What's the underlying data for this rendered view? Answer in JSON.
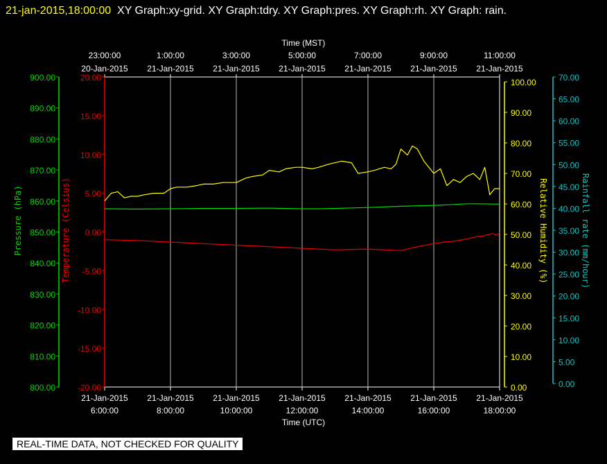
{
  "header": {
    "timestamp": "21-jan-2015,18:00:00",
    "graphs": "XY Graph:xy-grid.  XY Graph:tdry.  XY Graph:pres.  XY Graph:rh.  XY Graph: rain."
  },
  "footer": {
    "notice": "REAL-TIME DATA, NOT CHECKED FOR QUALITY"
  },
  "colors": {
    "pressure": "#00dd00",
    "temperature": "#ee0000",
    "humidity": "#ffff00",
    "rain": "#00cccc",
    "grid": "#bbbbbb",
    "text": "#ffffff"
  },
  "chart_data": {
    "type": "line",
    "x_top": {
      "label": "Time (MST)",
      "ticks": [
        {
          "time": "23:00:00",
          "date": "20-Jan-2015"
        },
        {
          "time": "1:00:00",
          "date": "21-Jan-2015"
        },
        {
          "time": "3:00:00",
          "date": "21-Jan-2015"
        },
        {
          "time": "5:00:00",
          "date": "21-Jan-2015"
        },
        {
          "time": "7:00:00",
          "date": "21-Jan-2015"
        },
        {
          "time": "9:00:00",
          "date": "21-Jan-2015"
        },
        {
          "time": "11:00:00",
          "date": "21-Jan-2015"
        }
      ]
    },
    "x_bottom": {
      "label": "Time (UTC)",
      "ticks": [
        {
          "date": "21-Jan-2015",
          "time": "6:00:00"
        },
        {
          "date": "21-Jan-2015",
          "time": "8:00:00"
        },
        {
          "date": "21-Jan-2015",
          "time": "10:00:00"
        },
        {
          "date": "21-Jan-2015",
          "time": "12:00:00"
        },
        {
          "date": "21-Jan-2015",
          "time": "14:00:00"
        },
        {
          "date": "21-Jan-2015",
          "time": "16:00:00"
        },
        {
          "date": "21-Jan-2015",
          "time": "18:00:00"
        }
      ]
    },
    "x_range_utc_hours": [
      6,
      18
    ],
    "y_axes": {
      "pressure": {
        "label": "Pressure (hPa)",
        "range": [
          800,
          900
        ],
        "ticks": [
          "900.00",
          "890.00",
          "880.00",
          "870.00",
          "860.00",
          "850.00",
          "840.00",
          "830.00",
          "820.00",
          "810.00",
          "800.00"
        ]
      },
      "temperature": {
        "label": "Temperature (Celsius)",
        "range": [
          -20,
          20
        ],
        "ticks": [
          "20.00",
          "15.00",
          "10.00",
          "5.00",
          "0.00",
          "-5.00",
          "-10.00",
          "-15.00",
          "-20.00"
        ]
      },
      "humidity": {
        "label": "Relative Humidity (%)",
        "range": [
          0,
          100
        ],
        "ticks": [
          "100.00",
          "90.00",
          "80.00",
          "70.00",
          "60.00",
          "50.00",
          "40.00",
          "30.00",
          "20.00",
          "10.00",
          "0.00"
        ]
      },
      "rain": {
        "label": "Rainfall rate (mm/hour)",
        "range": [
          0,
          70
        ],
        "ticks": [
          "70.00",
          "65.00",
          "60.00",
          "55.00",
          "50.00",
          "45.00",
          "40.00",
          "35.00",
          "30.00",
          "25.00",
          "20.00",
          "15.00",
          "10.00",
          "5.00",
          "0.00"
        ]
      }
    },
    "grid": true,
    "series": [
      {
        "axis": "humidity",
        "x": [
          6.0,
          6.2,
          6.4,
          6.6,
          6.8,
          7.0,
          7.2,
          7.5,
          7.8,
          8.0,
          8.2,
          8.5,
          8.8,
          9.0,
          9.3,
          9.6,
          10.0,
          10.3,
          10.5,
          10.8,
          11.0,
          11.3,
          11.5,
          11.8,
          12.0,
          12.3,
          12.5,
          12.8,
          13.0,
          13.2,
          13.5,
          13.7,
          14.0,
          14.2,
          14.5,
          14.7,
          14.85,
          15.0,
          15.2,
          15.35,
          15.5,
          15.7,
          16.0,
          16.2,
          16.4,
          16.6,
          16.8,
          17.0,
          17.2,
          17.4,
          17.55,
          17.7,
          17.85,
          18.0
        ],
        "y": [
          61,
          63.5,
          64,
          62,
          62.5,
          62.5,
          63,
          63.5,
          63.5,
          65,
          65.5,
          65.5,
          66,
          66.5,
          66.5,
          67,
          67,
          68.5,
          69,
          69.5,
          71,
          70.5,
          71.5,
          72,
          72,
          71.5,
          72,
          73,
          73.5,
          74,
          73.5,
          70,
          70.5,
          71,
          72,
          71.5,
          73,
          78,
          76,
          79,
          78,
          74,
          70,
          71.5,
          66,
          68,
          67,
          69,
          70,
          68,
          72,
          63,
          65,
          65
        ]
      },
      {
        "axis": "pressure",
        "x": [
          6.0,
          7.0,
          8.0,
          9.0,
          10.0,
          11.0,
          12.0,
          12.5,
          13.0,
          14.0,
          15.0,
          16.0,
          16.5,
          17.0,
          17.3,
          18.0
        ],
        "y": [
          857.5,
          857.4,
          857.5,
          857.6,
          857.6,
          857.7,
          857.5,
          857.5,
          857.6,
          857.9,
          858.3,
          858.6,
          858.8,
          859.1,
          859.1,
          859.0
        ]
      },
      {
        "axis": "temperature",
        "x": [
          6.0,
          7.0,
          8.0,
          9.0,
          10.0,
          11.0,
          12.0,
          12.5,
          13.0,
          14.0,
          14.5,
          15.0,
          15.2,
          15.5,
          16.0,
          16.3,
          16.6,
          17.0,
          17.3,
          17.5,
          17.8,
          17.9,
          18.0
        ],
        "y": [
          -1.0,
          -1.1,
          -1.3,
          -1.5,
          -1.7,
          -1.9,
          -2.1,
          -2.2,
          -2.3,
          -2.2,
          -2.3,
          -2.4,
          -2.2,
          -1.9,
          -1.5,
          -1.3,
          -1.2,
          -0.9,
          -0.6,
          -0.5,
          -0.2,
          -0.4,
          -0.1
        ]
      }
    ]
  }
}
